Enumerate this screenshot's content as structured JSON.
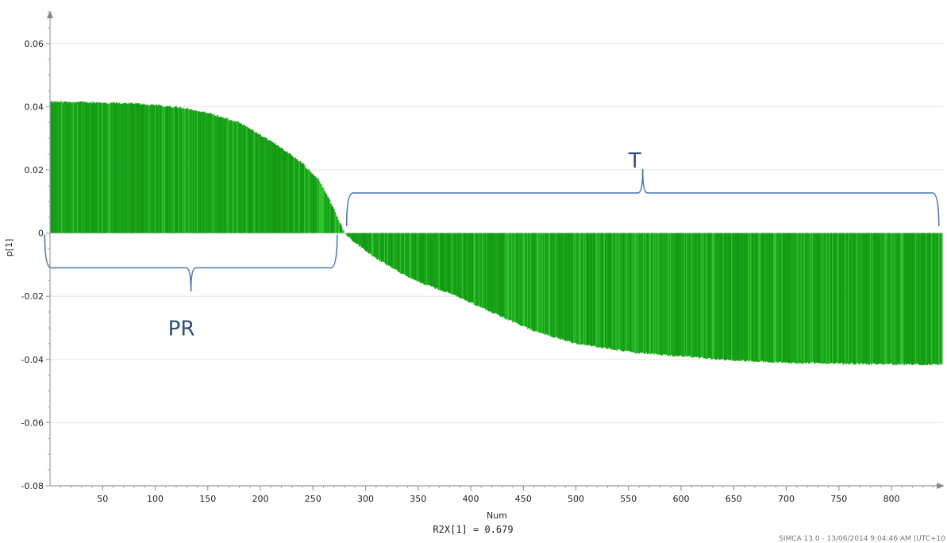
{
  "chart_data": {
    "type": "bar",
    "xlabel": "Num",
    "ylabel": "p[1]",
    "xlim": [
      0,
      849
    ],
    "ylim": [
      -0.08,
      0.07
    ],
    "x_ticks": [
      50,
      100,
      150,
      200,
      250,
      300,
      350,
      400,
      450,
      500,
      550,
      600,
      650,
      700,
      750,
      800
    ],
    "y_ticks": [
      -0.08,
      -0.06,
      -0.04,
      -0.02,
      0,
      0.02,
      0.04,
      0.06
    ],
    "y_tick_labels": [
      "-0.08",
      "-0.06",
      "-0.04",
      "-0.02",
      "0",
      "0.02",
      "0.04",
      "0.06"
    ],
    "grid": true,
    "bar_color": "#1aa51a",
    "n_bars": 848,
    "profile_points": [
      [
        1,
        0.0415
      ],
      [
        20,
        0.0415
      ],
      [
        50,
        0.0413
      ],
      [
        80,
        0.041
      ],
      [
        100,
        0.0405
      ],
      [
        130,
        0.0395
      ],
      [
        150,
        0.038
      ],
      [
        180,
        0.035
      ],
      [
        200,
        0.031
      ],
      [
        220,
        0.027
      ],
      [
        240,
        0.022
      ],
      [
        255,
        0.017
      ],
      [
        265,
        0.011
      ],
      [
        272,
        0.006
      ],
      [
        280,
        0.0
      ],
      [
        290,
        -0.003
      ],
      [
        310,
        -0.008
      ],
      [
        330,
        -0.012
      ],
      [
        350,
        -0.0155
      ],
      [
        380,
        -0.019
      ],
      [
        400,
        -0.022
      ],
      [
        420,
        -0.025
      ],
      [
        440,
        -0.028
      ],
      [
        460,
        -0.031
      ],
      [
        480,
        -0.033
      ],
      [
        500,
        -0.035
      ],
      [
        530,
        -0.0365
      ],
      [
        560,
        -0.038
      ],
      [
        600,
        -0.039
      ],
      [
        650,
        -0.0403
      ],
      [
        700,
        -0.041
      ],
      [
        750,
        -0.0413
      ],
      [
        800,
        -0.0415
      ],
      [
        848,
        -0.0416
      ]
    ],
    "annotations": [
      {
        "label": "PR",
        "x_start": -5,
        "x_end": 273,
        "y": -0.011,
        "direction": "down"
      },
      {
        "label": "T",
        "x_start": 282,
        "x_end": 845,
        "y": 0.0127,
        "direction": "up"
      }
    ],
    "stat_text": "R2X[1] = 0.679"
  },
  "footer": "SIMCA 13.0 - 13/06/2014 9:04:46 AM (UTC+10"
}
